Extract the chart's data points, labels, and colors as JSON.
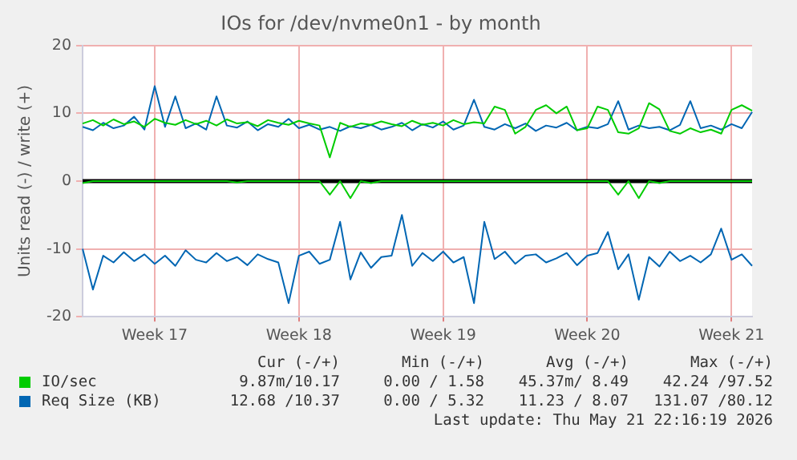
{
  "chart_data": {
    "type": "line",
    "title": "IOs for /dev/nvme0n1 - by month",
    "ylabel": "Units read (-) / write (+)",
    "categories": [
      null,
      null,
      null,
      null,
      null,
      null,
      null,
      "Week 17",
      null,
      null,
      null,
      null,
      null,
      null,
      null,
      null,
      null,
      null,
      null,
      null,
      null,
      "Week 18",
      null,
      null,
      null,
      null,
      null,
      null,
      null,
      null,
      null,
      null,
      null,
      null,
      null,
      "Week 19",
      null,
      null,
      null,
      null,
      null,
      null,
      null,
      null,
      null,
      null,
      null,
      null,
      null,
      "Week 20",
      null,
      null,
      null,
      null,
      null,
      null,
      null,
      null,
      null,
      null,
      null,
      null,
      null,
      "Week 21",
      null,
      null
    ],
    "ylim": [
      -20,
      20
    ],
    "yticks": [
      -20,
      -10,
      0,
      10,
      20
    ],
    "grid": true,
    "legend": "bottom",
    "marker": "none",
    "line_style": "solid",
    "series": [
      {
        "color": "#00cc00",
        "values": [
          -0.3,
          0,
          0,
          0,
          0,
          0,
          0,
          0,
          0,
          0,
          0,
          0,
          0,
          0,
          0,
          -0.2,
          0,
          0,
          0,
          0,
          0,
          0,
          0,
          0,
          -2.0,
          0,
          -2.5,
          0,
          -0.3,
          0,
          0,
          0,
          0,
          0,
          0,
          0,
          0,
          0,
          0,
          0,
          0,
          0,
          0,
          0,
          0,
          0,
          0,
          0,
          0,
          0,
          0,
          0,
          -2.0,
          0,
          -2.5,
          0,
          -0.3,
          0,
          0,
          0,
          0,
          0,
          0,
          0,
          0,
          0
        ]
      },
      {
        "name": "IO/sec",
        "color": "#00cc00",
        "values": [
          8.5,
          9.0,
          8.2,
          9.1,
          8.4,
          8.8,
          8.0,
          9.2,
          8.6,
          8.3,
          9.0,
          8.4,
          8.9,
          8.2,
          9.1,
          8.5,
          8.7,
          8.1,
          9.0,
          8.6,
          8.3,
          8.9,
          8.5,
          8.2,
          3.5,
          8.6,
          8.0,
          8.5,
          8.3,
          8.8,
          8.4,
          8.1,
          8.9,
          8.3,
          8.6,
          8.2,
          9.0,
          8.4,
          8.7,
          8.5,
          11.0,
          10.5,
          7.0,
          8.0,
          10.5,
          11.2,
          10.0,
          11.0,
          7.5,
          7.8,
          11.0,
          10.5,
          7.2,
          7.0,
          7.8,
          11.5,
          10.6,
          7.4,
          7.0,
          7.8,
          7.2,
          7.6,
          7.0,
          10.5,
          11.2,
          10.4
        ]
      },
      {
        "color": "#0066b3",
        "values": [
          -10.0,
          -16.0,
          -11.0,
          -12.0,
          -10.5,
          -11.8,
          -10.8,
          -12.2,
          -11.0,
          -12.5,
          -10.2,
          -11.6,
          -12.0,
          -10.6,
          -11.8,
          -11.2,
          -12.4,
          -10.8,
          -11.5,
          -12.0,
          -18.0,
          -11.0,
          -10.4,
          -12.2,
          -11.6,
          -6.0,
          -14.5,
          -10.5,
          -12.8,
          -11.2,
          -11.0,
          -5.0,
          -12.5,
          -10.6,
          -11.8,
          -10.4,
          -12.0,
          -11.2,
          -18.0,
          -6.0,
          -11.5,
          -10.4,
          -12.2,
          -11.0,
          -10.8,
          -12.0,
          -11.4,
          -10.6,
          -12.4,
          -11.0,
          -10.6,
          -7.5,
          -13.0,
          -10.8,
          -17.5,
          -11.2,
          -12.6,
          -10.4,
          -11.8,
          -11.0,
          -12.0,
          -10.8,
          -7.0,
          -11.6,
          -10.8,
          -12.5
        ]
      },
      {
        "name": "Req Size (KB)",
        "color": "#0066b3",
        "values": [
          8.0,
          7.5,
          8.6,
          7.8,
          8.2,
          9.5,
          7.6,
          14.0,
          8.0,
          12.5,
          7.8,
          8.5,
          7.6,
          12.5,
          8.2,
          7.9,
          8.8,
          7.5,
          8.4,
          8.0,
          9.2,
          7.8,
          8.3,
          7.6,
          8.0,
          7.4,
          8.1,
          7.8,
          8.3,
          7.6,
          8.0,
          8.6,
          7.5,
          8.4,
          7.9,
          8.8,
          7.6,
          8.2,
          12.0,
          8.0,
          7.6,
          8.4,
          7.8,
          8.5,
          7.4,
          8.2,
          7.9,
          8.6,
          7.5,
          8.0,
          7.8,
          8.4,
          11.8,
          7.6,
          8.2,
          7.8,
          8.0,
          7.5,
          8.3,
          11.8,
          7.8,
          8.2,
          7.6,
          8.4,
          7.8,
          10.2
        ]
      }
    ],
    "ref_lines": [
      {
        "axis": "y",
        "value": 0,
        "color": "#000000"
      }
    ],
    "annotations": [
      "Cur (-/+)",
      "Min (-/+)",
      "Avg (-/+)",
      "Max (-/+)",
      "9.87m/10.17",
      "0.00 / 1.58",
      "45.37m/ 8.49",
      "42.24 /97.52",
      "12.68 /10.37",
      "0.00 / 5.32",
      "11.23 / 8.07",
      "131.07 /80.12",
      "Last update: Thu May 21 22:16:19 2026"
    ]
  }
}
